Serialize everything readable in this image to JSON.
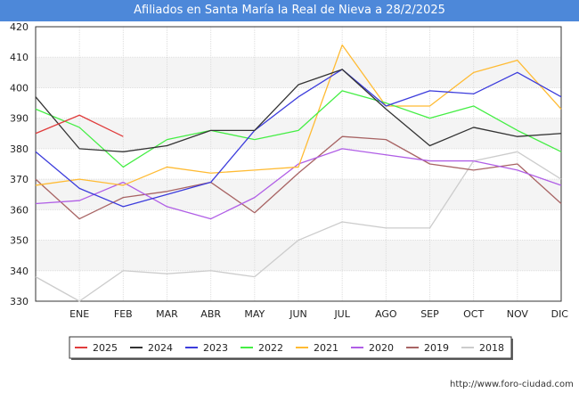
{
  "title": "Afiliados en Santa María la Real de Nieva a 28/2/2025",
  "watermark": "http://www.foro-ciudad.com",
  "chart_data": {
    "type": "line",
    "categories": [
      "",
      "ENE",
      "FEB",
      "MAR",
      "ABR",
      "MAY",
      "JUN",
      "JUL",
      "AGO",
      "SEP",
      "OCT",
      "NOV",
      "DIC"
    ],
    "ylim": [
      330,
      420
    ],
    "yticks": [
      330,
      340,
      350,
      360,
      370,
      380,
      390,
      400,
      410,
      420
    ],
    "grid": true,
    "legend_position": "bottom",
    "series": [
      {
        "name": "2025",
        "color": "#e03c3c",
        "values": [
          385,
          391,
          384,
          null,
          null,
          null,
          null,
          null,
          null,
          null,
          null,
          null,
          null
        ]
      },
      {
        "name": "2024",
        "color": "#333333",
        "values": [
          397,
          380,
          379,
          381,
          386,
          386,
          401,
          406,
          393,
          381,
          387,
          384,
          385
        ]
      },
      {
        "name": "2023",
        "color": "#3c3cdc",
        "values": [
          379,
          367,
          361,
          365,
          369,
          386,
          397,
          406,
          394,
          399,
          398,
          405,
          397
        ]
      },
      {
        "name": "2022",
        "color": "#44ee44",
        "values": [
          393,
          387,
          374,
          383,
          386,
          383,
          386,
          399,
          395,
          390,
          394,
          386,
          379
        ]
      },
      {
        "name": "2021",
        "color": "#ffbb33",
        "values": [
          368,
          370,
          368,
          374,
          372,
          373,
          374,
          414,
          394,
          394,
          405,
          409,
          393
        ]
      },
      {
        "name": "2020",
        "color": "#b05ee6",
        "values": [
          362,
          363,
          369,
          361,
          357,
          364,
          375,
          380,
          378,
          376,
          376,
          373,
          368
        ]
      },
      {
        "name": "2019",
        "color": "#a86464",
        "values": [
          370,
          357,
          364,
          366,
          369,
          359,
          372,
          384,
          383,
          375,
          373,
          375,
          362
        ]
      },
      {
        "name": "2018",
        "color": "#cccccc",
        "values": [
          338,
          330,
          340,
          339,
          340,
          338,
          350,
          356,
          354,
          354,
          376,
          379,
          370
        ]
      }
    ]
  }
}
